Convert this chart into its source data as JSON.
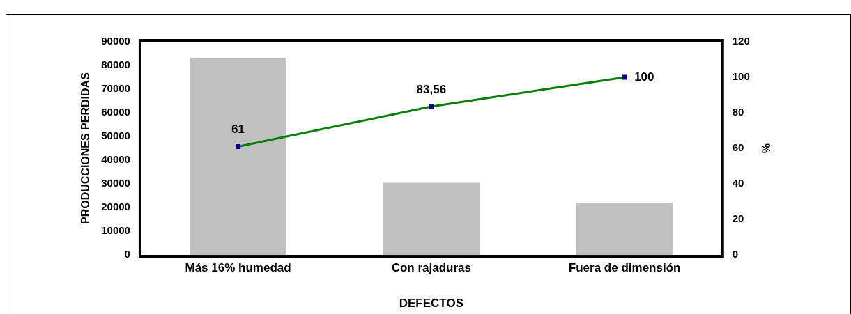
{
  "chart_data": {
    "type": "bar",
    "xlabel": "DEFECTOS",
    "ylabel": "PRODUCCIONES PERDIDAS",
    "y2label": "%",
    "categories": [
      "Más 16% humedad",
      "Con rajaduras",
      "Fuera de dimensión"
    ],
    "series": [
      {
        "color": "#c0c0c0",
        "values": [
          83000,
          30500,
          22000
        ]
      },
      {
        "type": "line",
        "axis": "y2",
        "color": "#008000",
        "marker": "square",
        "values": [
          61,
          83.56,
          100
        ],
        "value_labels": [
          "61",
          "83,56",
          "100"
        ]
      }
    ],
    "ylim": [
      0,
      90000
    ],
    "yticks": [
      0,
      10000,
      20000,
      30000,
      40000,
      50000,
      60000,
      70000,
      80000,
      90000
    ],
    "y2lim": [
      0,
      120
    ],
    "y2ticks": [
      0,
      20,
      40,
      60,
      80,
      100,
      120
    ],
    "grid": false,
    "legend": false
  }
}
